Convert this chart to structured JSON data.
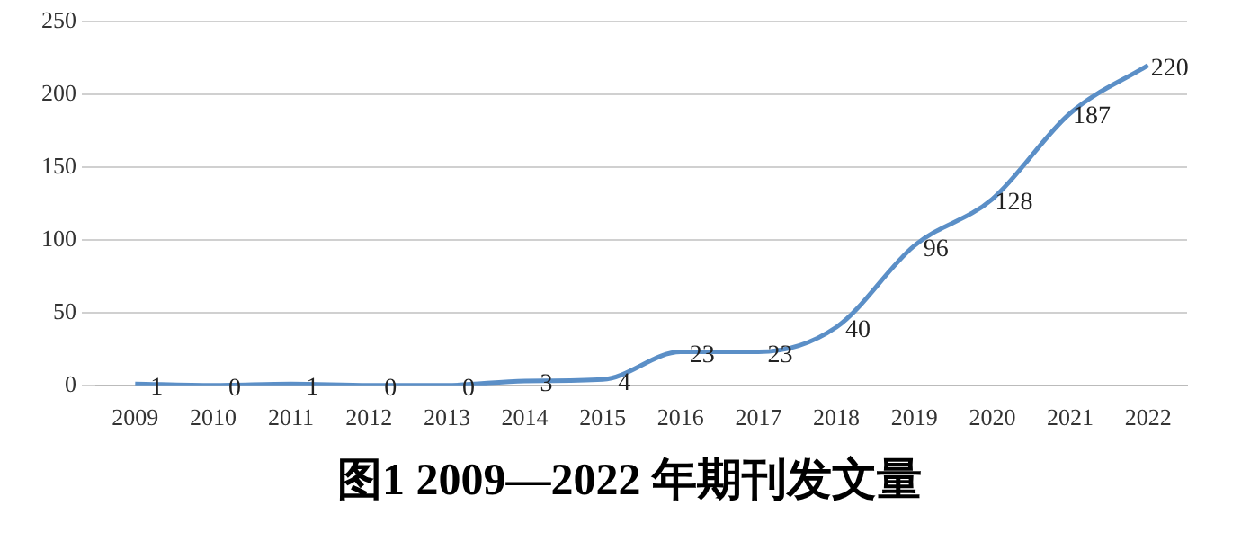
{
  "chart_data": {
    "type": "line",
    "title": "图1   2009—2022 年期刊发文量",
    "categories": [
      "2009",
      "2010",
      "2011",
      "2012",
      "2013",
      "2014",
      "2015",
      "2016",
      "2017",
      "2018",
      "2019",
      "2020",
      "2021",
      "2022"
    ],
    "series": [
      {
        "color": "#5b8fc7",
        "values": [
          1,
          0,
          1,
          0,
          0,
          3,
          4,
          23,
          23,
          40,
          96,
          128,
          187,
          220
        ]
      }
    ],
    "ylim": [
      0,
      250
    ],
    "yticks": [
      0,
      50,
      100,
      150,
      200,
      250
    ],
    "grid": "y",
    "legend": false,
    "marker": "none",
    "line_style": "solid",
    "data_labels": true
  }
}
